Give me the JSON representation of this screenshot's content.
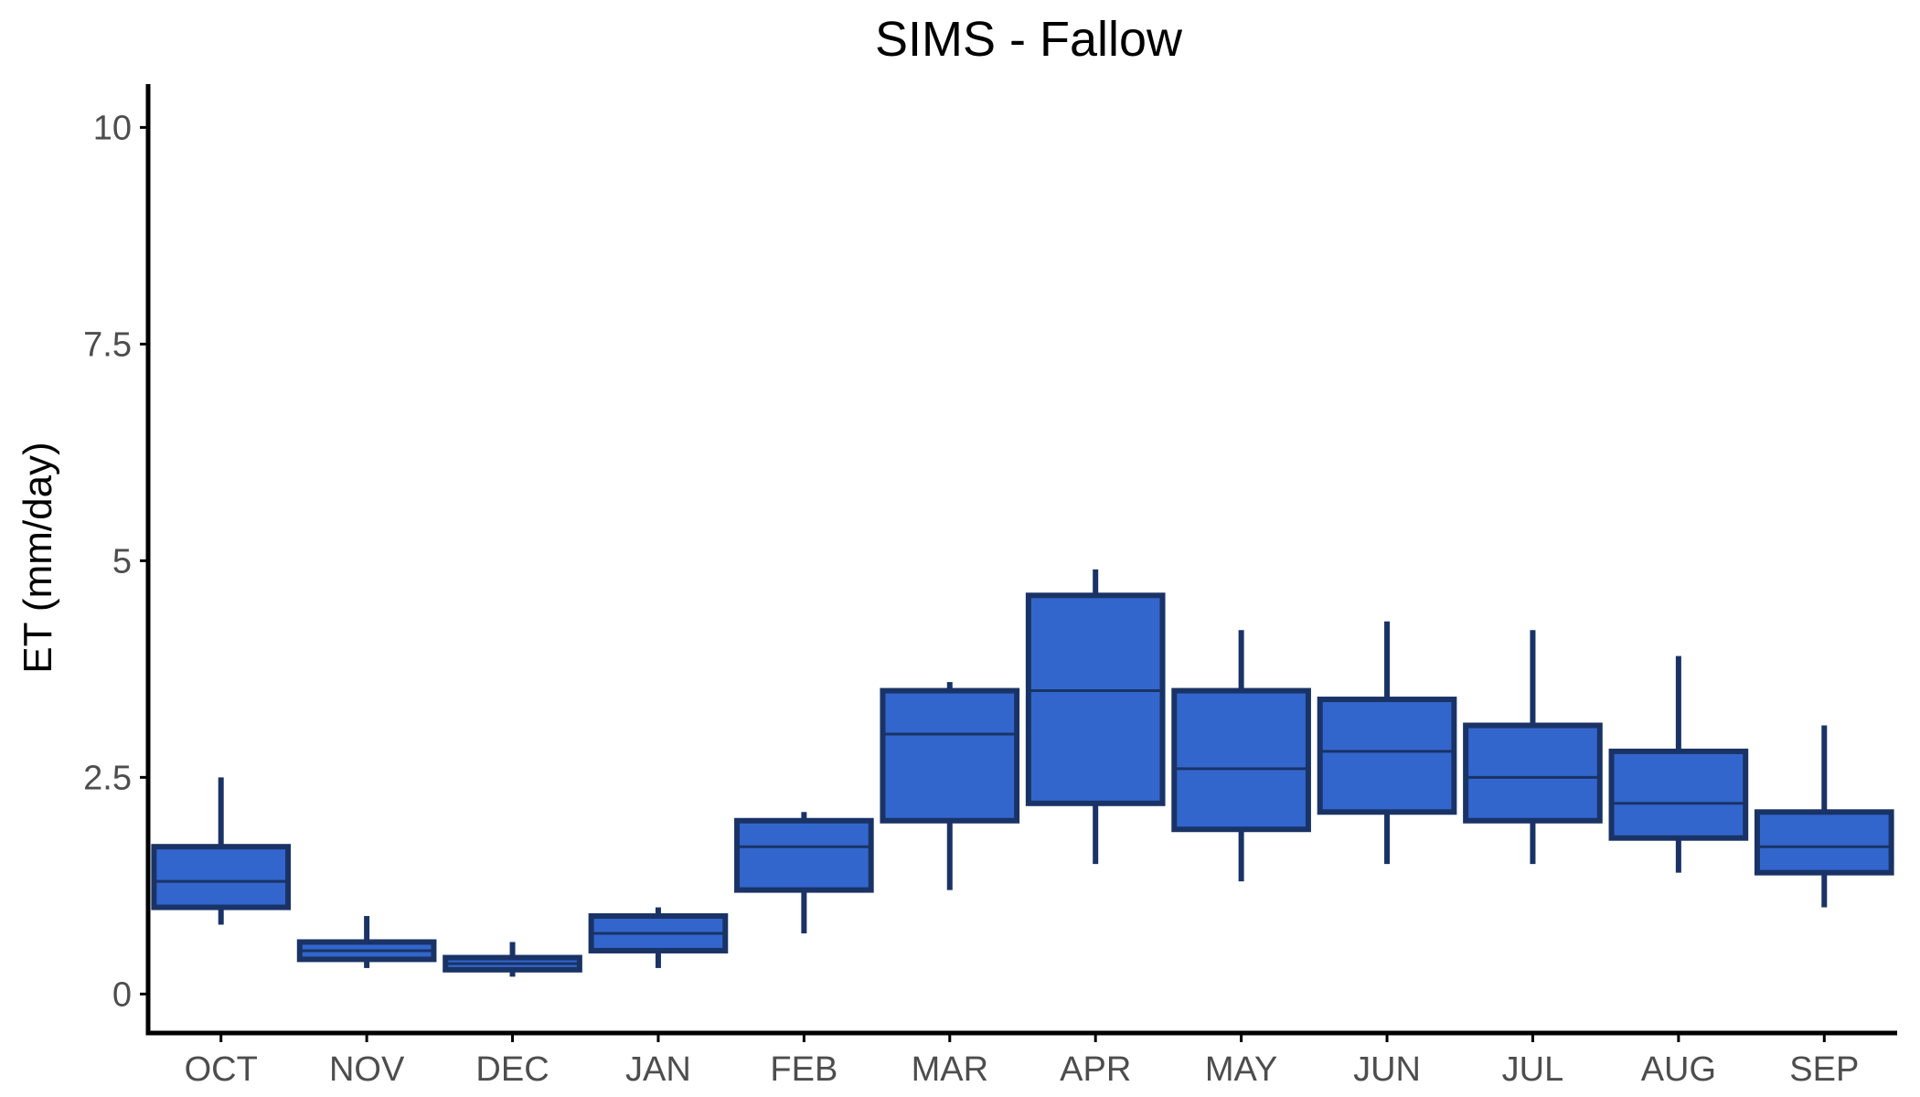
{
  "chart_data": {
    "type": "box",
    "title": "SIMS - Fallow",
    "xlabel": "",
    "ylabel": "ET (mm/day)",
    "ylim": [
      -0.45,
      10.5
    ],
    "yticks": [
      0,
      2.5,
      5,
      7.5,
      10
    ],
    "ytick_labels": [
      "0",
      "2.5",
      "5",
      "7.5",
      "10"
    ],
    "categories": [
      "OCT",
      "NOV",
      "DEC",
      "JAN",
      "FEB",
      "MAR",
      "APR",
      "MAY",
      "JUN",
      "JUL",
      "AUG",
      "SEP"
    ],
    "boxes": [
      {
        "category": "OCT",
        "min": 0.8,
        "q1": 1.0,
        "median": 1.3,
        "q3": 1.7,
        "max": 2.5
      },
      {
        "category": "NOV",
        "min": 0.3,
        "q1": 0.4,
        "median": 0.5,
        "q3": 0.6,
        "max": 0.9
      },
      {
        "category": "DEC",
        "min": 0.2,
        "q1": 0.28,
        "median": 0.35,
        "q3": 0.42,
        "max": 0.6
      },
      {
        "category": "JAN",
        "min": 0.3,
        "q1": 0.5,
        "median": 0.7,
        "q3": 0.9,
        "max": 1.0
      },
      {
        "category": "FEB",
        "min": 0.7,
        "q1": 1.2,
        "median": 1.7,
        "q3": 2.0,
        "max": 2.1
      },
      {
        "category": "MAR",
        "min": 1.2,
        "q1": 2.0,
        "median": 3.0,
        "q3": 3.5,
        "max": 3.6
      },
      {
        "category": "APR",
        "min": 1.5,
        "q1": 2.2,
        "median": 3.5,
        "q3": 4.6,
        "max": 4.9
      },
      {
        "category": "MAY",
        "min": 1.3,
        "q1": 1.9,
        "median": 2.6,
        "q3": 3.5,
        "max": 4.2
      },
      {
        "category": "JUN",
        "min": 1.5,
        "q1": 2.1,
        "median": 2.8,
        "q3": 3.4,
        "max": 4.3
      },
      {
        "category": "JUL",
        "min": 1.5,
        "q1": 2.0,
        "median": 2.5,
        "q3": 3.1,
        "max": 4.2
      },
      {
        "category": "AUG",
        "min": 1.4,
        "q1": 1.8,
        "median": 2.2,
        "q3": 2.8,
        "max": 3.9
      },
      {
        "category": "SEP",
        "min": 1.0,
        "q1": 1.4,
        "median": 1.7,
        "q3": 2.1,
        "max": 3.1
      }
    ],
    "colors": {
      "box_fill": "#3366CC",
      "box_stroke": "#1A3366",
      "axis": "#000000",
      "tick_text": "#4D4D4D"
    },
    "grid": false,
    "legend": "none"
  }
}
